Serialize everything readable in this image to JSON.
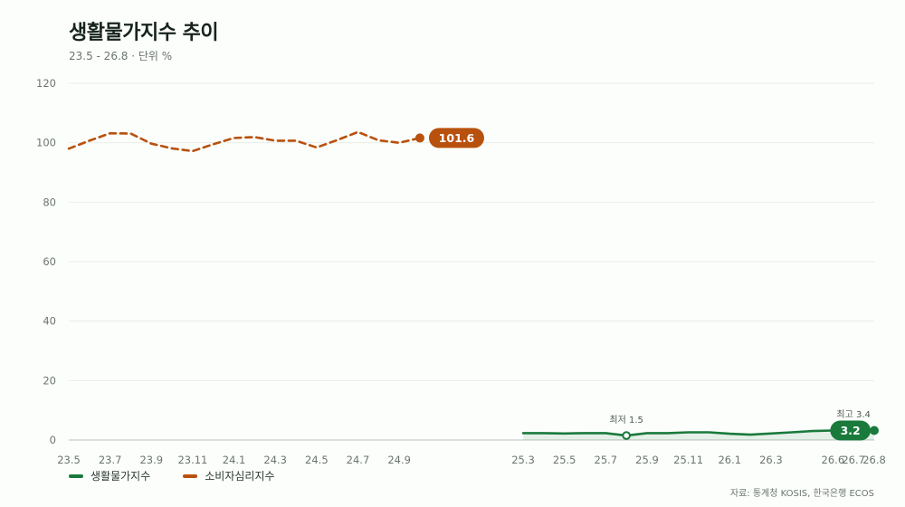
{
  "chart": {
    "title": "생활물가지수 추이",
    "subtitle": "23.5 - 26.8 · 단위 %",
    "source": "자료: 통계청 KOSIS, 한국은행 ECOS"
  },
  "chart_data": {
    "type": "line",
    "title": "생활물가지수 추이",
    "subtitle": "23.5 - 26.8 · 단위 %",
    "xlabel": "",
    "ylabel": "",
    "ylim": [
      0,
      120
    ],
    "yticks": [
      0,
      20,
      40,
      60,
      80,
      100,
      120
    ],
    "xticks": [
      "23.5",
      "23.7",
      "23.9",
      "23.11",
      "24.1",
      "24.3",
      "24.5",
      "24.7",
      "24.9",
      "25.3",
      "25.5",
      "25.7",
      "25.9",
      "25.11",
      "26.1",
      "26.3",
      "26.6",
      "26.7",
      "26.8"
    ],
    "grid": true,
    "legend_position": "bottom-left",
    "series": [
      {
        "name": "생활물가지수",
        "color": "#1a7a3c",
        "style": "solid",
        "area": true,
        "x": [
          "25.3",
          "25.4",
          "25.5",
          "25.6",
          "25.7",
          "25.8",
          "25.9",
          "25.10",
          "25.11",
          "25.12",
          "26.1",
          "26.2",
          "26.3",
          "26.4",
          "26.5",
          "26.6",
          "26.7",
          "26.8"
        ],
        "values": [
          2.3,
          2.3,
          2.2,
          2.3,
          2.3,
          1.5,
          2.3,
          2.3,
          2.6,
          2.6,
          2.1,
          1.8,
          2.2,
          2.6,
          3.0,
          3.2,
          3.4,
          3.2
        ],
        "annotations": [
          {
            "x": "25.8",
            "label": "최저 1.5"
          },
          {
            "x": "26.7",
            "label": "최고 3.4"
          }
        ],
        "end_label": "3.2"
      },
      {
        "name": "소비자심리지수",
        "color": "#b8510d",
        "style": "dashed",
        "x": [
          "23.5",
          "23.6",
          "23.7",
          "23.8",
          "23.9",
          "23.10",
          "23.11",
          "23.12",
          "24.1",
          "24.2",
          "24.3",
          "24.4",
          "24.5",
          "24.6",
          "24.7",
          "24.8",
          "24.9",
          "24.10"
        ],
        "values": [
          98.0,
          100.7,
          103.2,
          103.1,
          99.7,
          98.1,
          97.2,
          99.5,
          101.6,
          101.9,
          100.7,
          100.7,
          98.4,
          100.9,
          103.6,
          100.8,
          100.0,
          101.6
        ],
        "end_label": "101.6"
      }
    ]
  }
}
